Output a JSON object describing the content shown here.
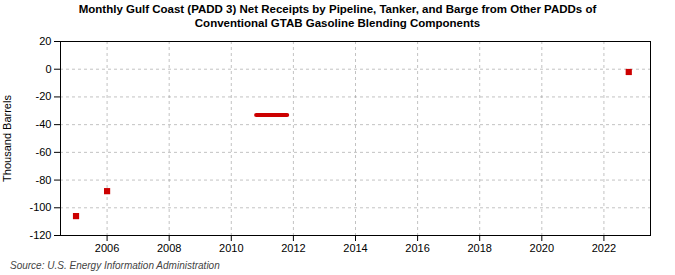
{
  "chart_data": {
    "type": "scatter",
    "title": "Monthly Gulf Coast (PADD 3) Net Receipts by Pipeline, Tanker, and Barge from Other PADDs of\nConventional GTAB Gasoline Blending Components",
    "ylabel": "Thousand Barrels",
    "source": "Source: U.S. Energy Information Administration",
    "series": [
      {
        "type": "line",
        "color": "#cc0000",
        "x": [
          2010.8,
          2011.8
        ],
        "values": [
          -33,
          -33
        ]
      },
      {
        "type": "scatter",
        "color": "#cc0000",
        "marker": "square",
        "x": [
          2005.0,
          2006.0,
          2022.8
        ],
        "values": [
          -106,
          -88,
          -2
        ]
      }
    ],
    "xlim": [
      2004.5,
      2023.5
    ],
    "xticks": [
      2006,
      2008,
      2010,
      2012,
      2014,
      2016,
      2018,
      2020,
      2022
    ],
    "ylim": [
      -120,
      20
    ],
    "yticks": [
      -120,
      -100,
      -80,
      -60,
      -40,
      -20,
      0,
      20
    ],
    "grid": true
  }
}
